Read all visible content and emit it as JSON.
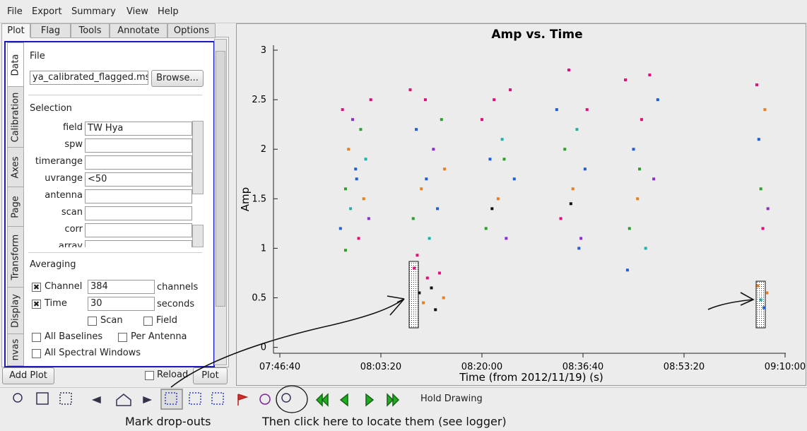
{
  "menu": [
    "File",
    "Export",
    "Summary",
    "View",
    "Help"
  ],
  "top_tabs": [
    "Plot",
    "Flag",
    "Tools",
    "Annotate",
    "Options"
  ],
  "side_tabs": [
    "Data",
    "Calibration",
    "Axes",
    "Page",
    "Transform",
    "Display",
    "nvas"
  ],
  "file": {
    "label": "File",
    "path": "ya_calibrated_flagged.ms",
    "button": "Browse..."
  },
  "selection": {
    "heading": "Selection",
    "fields": [
      {
        "label": "field",
        "value": "TW Hya"
      },
      {
        "label": "spw"
      },
      {
        "label": "timerange"
      },
      {
        "label": "uvrange",
        "value": "<50"
      },
      {
        "label": "antenna"
      },
      {
        "label": "scan"
      },
      {
        "label": "corr"
      },
      {
        "label": "array"
      }
    ]
  },
  "averaging": {
    "heading": "Averaging",
    "channel": {
      "label": "Channel",
      "value": 384,
      "unit": "channels",
      "checked": true
    },
    "time": {
      "label": "Time",
      "value": 30,
      "unit": "seconds",
      "checked": true
    },
    "options": [
      "Scan",
      "Field",
      "All Baselines",
      "Per Antenna",
      "All Spectral Windows"
    ]
  },
  "buttons": {
    "add_plot": "Add Plot",
    "reload": "Reload",
    "plot": "Plot"
  },
  "toolbar": {
    "hold_drawing": "Hold Drawing"
  },
  "annotations": [
    "Mark drop-outs",
    "Then click here to locate them (see logger)"
  ],
  "chart_data": {
    "type": "scatter",
    "title": "Amp vs. Time",
    "xlabel": "Time (from 2012/11/19) (s)",
    "ylabel": "Amp",
    "xlim": [
      27937,
      33007
    ],
    "ylim": [
      -0.06,
      3.05
    ],
    "xticks": [
      {
        "value": 28000,
        "label": "07:46:40"
      },
      {
        "value": 29000,
        "label": "08:03:20"
      },
      {
        "value": 30000,
        "label": "08:20:00"
      },
      {
        "value": 31000,
        "label": "08:36:40"
      },
      {
        "value": 32000,
        "label": "08:53:20"
      },
      {
        "value": 33000,
        "label": "09:10:00"
      }
    ],
    "yticks": [
      0,
      0.5,
      1,
      1.5,
      2,
      2.5,
      3
    ],
    "x": [
      28600,
      28620,
      28650,
      28680,
      28700,
      28720,
      28750,
      28780,
      28800,
      28830,
      28850,
      28880,
      28900,
      28650,
      28760,
      29290,
      29320,
      29350,
      29400,
      29440,
      29480,
      29520,
      29560,
      29600,
      29630,
      29330,
      29380,
      29420,
      29460,
      29500,
      29540,
      29580,
      29620,
      29360,
      29450,
      30000,
      30040,
      30080,
      30120,
      30160,
      30200,
      30240,
      30280,
      30320,
      30100,
      30220,
      30740,
      30780,
      30820,
      30860,
      30900,
      30940,
      30980,
      31020,
      31040,
      30880,
      30960,
      31420,
      31460,
      31500,
      31540,
      31580,
      31620,
      31660,
      31700,
      31740,
      31440,
      31560,
      32720,
      32740,
      32760,
      32780,
      32800,
      32830,
      32730,
      32760,
      32790,
      32820
    ],
    "values": [
      1.2,
      2.4,
      1.6,
      2.0,
      1.4,
      2.3,
      1.8,
      1.1,
      2.2,
      1.5,
      1.9,
      1.3,
      2.5,
      0.98,
      1.7,
      2.6,
      1.3,
      2.2,
      1.6,
      2.5,
      1.1,
      2.0,
      1.4,
      2.3,
      1.8,
      0.8,
      0.55,
      0.45,
      0.7,
      0.6,
      0.38,
      0.75,
      0.5,
      0.93,
      1.7,
      2.3,
      1.2,
      1.9,
      2.5,
      1.5,
      2.1,
      1.1,
      2.6,
      1.7,
      1.4,
      1.9,
      2.4,
      1.3,
      2.0,
      2.8,
      1.6,
      2.2,
      1.1,
      1.8,
      2.4,
      1.45,
      1.0,
      2.7,
      1.2,
      2.0,
      1.5,
      2.3,
      1.0,
      2.75,
      1.7,
      2.5,
      0.78,
      1.8,
      2.65,
      2.1,
      1.6,
      1.2,
      2.4,
      1.4,
      0.62,
      0.48,
      0.4,
      0.55
    ],
    "colors": [
      "#1f5fd8",
      "#e0107a",
      "#2ca02c",
      "#e67e22",
      "#20b2aa",
      "#8b2fc9",
      "#1f5fd8",
      "#e0107a",
      "#2ca02c",
      "#e67e22",
      "#20b2aa",
      "#8b2fc9",
      "#e0107a",
      "#2ca02c",
      "#1f5fd8",
      "#e0107a",
      "#2ca02c",
      "#1f5fd8",
      "#e67e22",
      "#e0107a",
      "#20b2aa",
      "#8b2fc9",
      "#1f5fd8",
      "#2ca02c",
      "#e67e22",
      "#e0107a",
      "#111111",
      "#e67e22",
      "#e0107a",
      "#111111",
      "#111111",
      "#e0107a",
      "#e67e22",
      "#e0107a",
      "#1f5fd8",
      "#e0107a",
      "#2ca02c",
      "#1f5fd8",
      "#e0107a",
      "#e67e22",
      "#20b2aa",
      "#8b2fc9",
      "#e0107a",
      "#1f5fd8",
      "#111111",
      "#2ca02c",
      "#1f5fd8",
      "#e0107a",
      "#2ca02c",
      "#e0107a",
      "#e67e22",
      "#20b2aa",
      "#8b2fc9",
      "#1f5fd8",
      "#e0107a",
      "#111111",
      "#1f5fd8",
      "#e0107a",
      "#2ca02c",
      "#1f5fd8",
      "#e67e22",
      "#e0107a",
      "#20b2aa",
      "#e0107a",
      "#8b2fc9",
      "#1f5fd8",
      "#1f5fd8",
      "#2ca02c",
      "#e0107a",
      "#1f5fd8",
      "#2ca02c",
      "#e0107a",
      "#e67e22",
      "#8b2fc9",
      "#e67e22",
      "#20b2aa",
      "#1f5fd8",
      "#e67e22"
    ]
  }
}
